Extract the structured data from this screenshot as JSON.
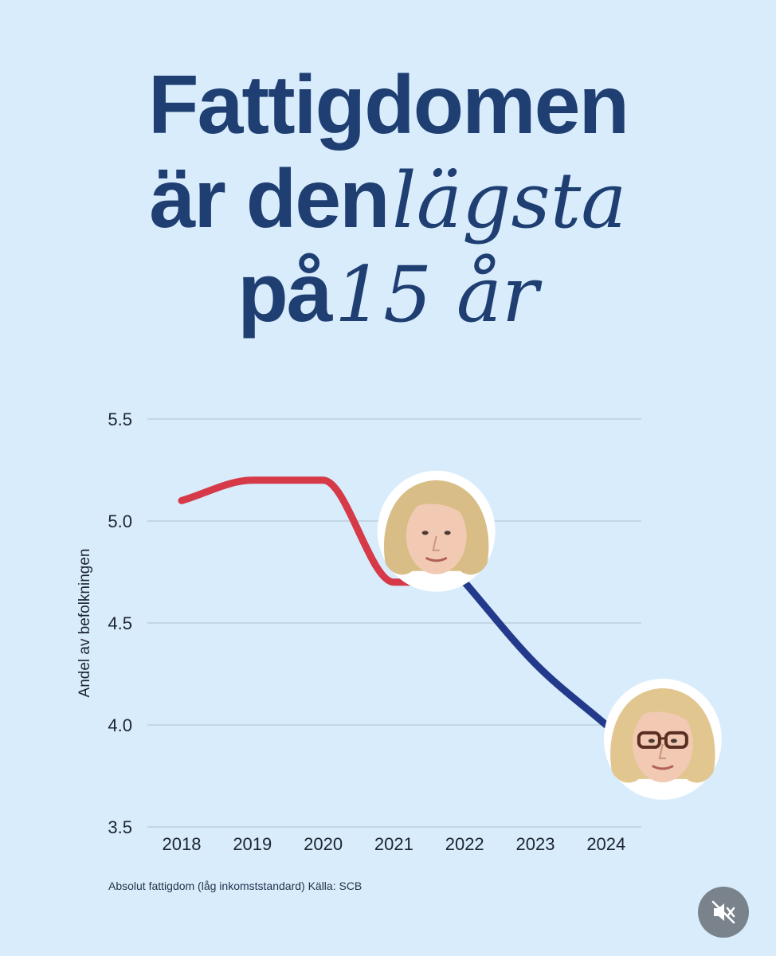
{
  "headline": {
    "line1_bold": "Fattigdomen",
    "line2_bold": "är den",
    "line2_italic": "lägsta",
    "line3_bold": "på",
    "line3_italic": "15 år"
  },
  "footnote": "Absolut fattigdom (låg inkomststandard) Källa: SCB",
  "colors": {
    "background": "#d9ecfb",
    "headline": "#1f3f73",
    "series_red": "#d63a48",
    "series_blue": "#233a8c",
    "gridline": "#b7c7d6"
  },
  "icons": {
    "mute": "speaker-muted-icon"
  },
  "chart_data": {
    "type": "line",
    "title": "",
    "xlabel": "",
    "ylabel": "Andel av befolkningen",
    "x": [
      "2018",
      "2019",
      "2020",
      "2021",
      "2022",
      "2023",
      "2024"
    ],
    "ylim": [
      3.5,
      5.5
    ],
    "yticks": [
      "3.5",
      "4.0",
      "4.5",
      "5.0",
      "5.5"
    ],
    "grid": true,
    "series": [
      {
        "values": [
          5.1,
          5.2,
          5.2,
          4.7,
          4.7,
          null,
          null
        ],
        "color": "#d63a48"
      },
      {
        "values": [
          null,
          null,
          null,
          null,
          4.7,
          4.3,
          4.0
        ],
        "color": "#233a8c"
      }
    ],
    "annotations": [
      {
        "type": "portrait",
        "x": "2021.6",
        "y": 4.95,
        "hair": "blonde-bob",
        "glasses": false
      },
      {
        "type": "portrait",
        "x": "2024.8",
        "y": 3.93,
        "hair": "light-blonde",
        "glasses": true
      }
    ]
  }
}
